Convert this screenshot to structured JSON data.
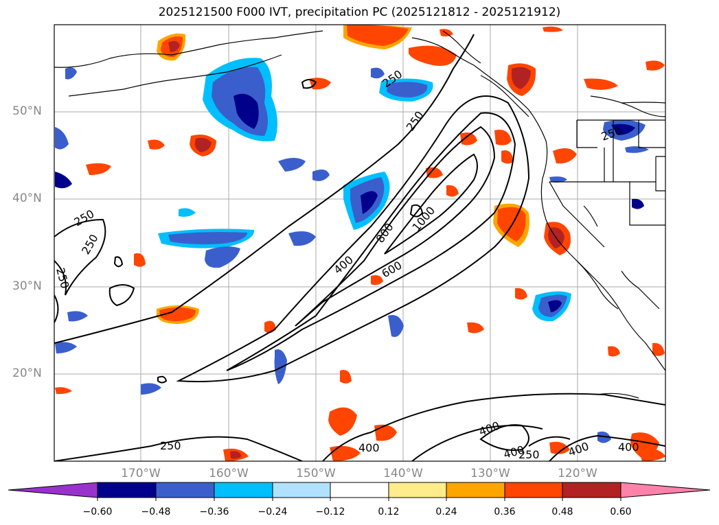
{
  "title": "2025121500 F000 IVT, precipitation PC (2025121812 - 2025121912)",
  "map": {
    "lat_labels": [
      "50°N",
      "40°N",
      "30°N",
      "20°N"
    ],
    "lon_labels": [
      "170°W",
      "160°W",
      "150°W",
      "140°W",
      "130°W",
      "120°W"
    ],
    "ivt_contour_levels": [
      "250",
      "400",
      "600",
      "800",
      "1000"
    ],
    "contour_labels": [
      "250",
      "250",
      "250",
      "250",
      "250",
      "250",
      "250",
      "250",
      "400",
      "600",
      "800",
      "1000",
      "400",
      "400",
      "400",
      "400",
      "400"
    ]
  },
  "colorbar": {
    "ticks": [
      "−0.60",
      "−0.48",
      "−0.36",
      "−0.24",
      "−0.12",
      "0.12",
      "0.24",
      "0.36",
      "0.48",
      "0.60"
    ],
    "colors": [
      "#9932cc",
      "#00008b",
      "#3a5fcd",
      "#00bfff",
      "#b0e2ff",
      "#ffffff",
      "#ffec8b",
      "#ffa500",
      "#ff4500",
      "#b22222",
      "#ff82ab"
    ]
  },
  "chart_data": {
    "type": "heatmap",
    "title": "2025121500 F000 IVT, precipitation PC (2025121812 - 2025121912)",
    "x_axis_ticks": [
      "170°W",
      "160°W",
      "150°W",
      "140°W",
      "130°W",
      "120°W"
    ],
    "y_axis_ticks": [
      "50°N",
      "40°N",
      "30°N",
      "20°N"
    ],
    "colorbar_ticks": [
      -0.6,
      -0.48,
      -0.36,
      -0.24,
      -0.12,
      0.12,
      0.24,
      0.36,
      0.48,
      0.6
    ],
    "contour_levels": [
      250,
      400,
      600,
      800,
      1000
    ],
    "grid": true
  }
}
